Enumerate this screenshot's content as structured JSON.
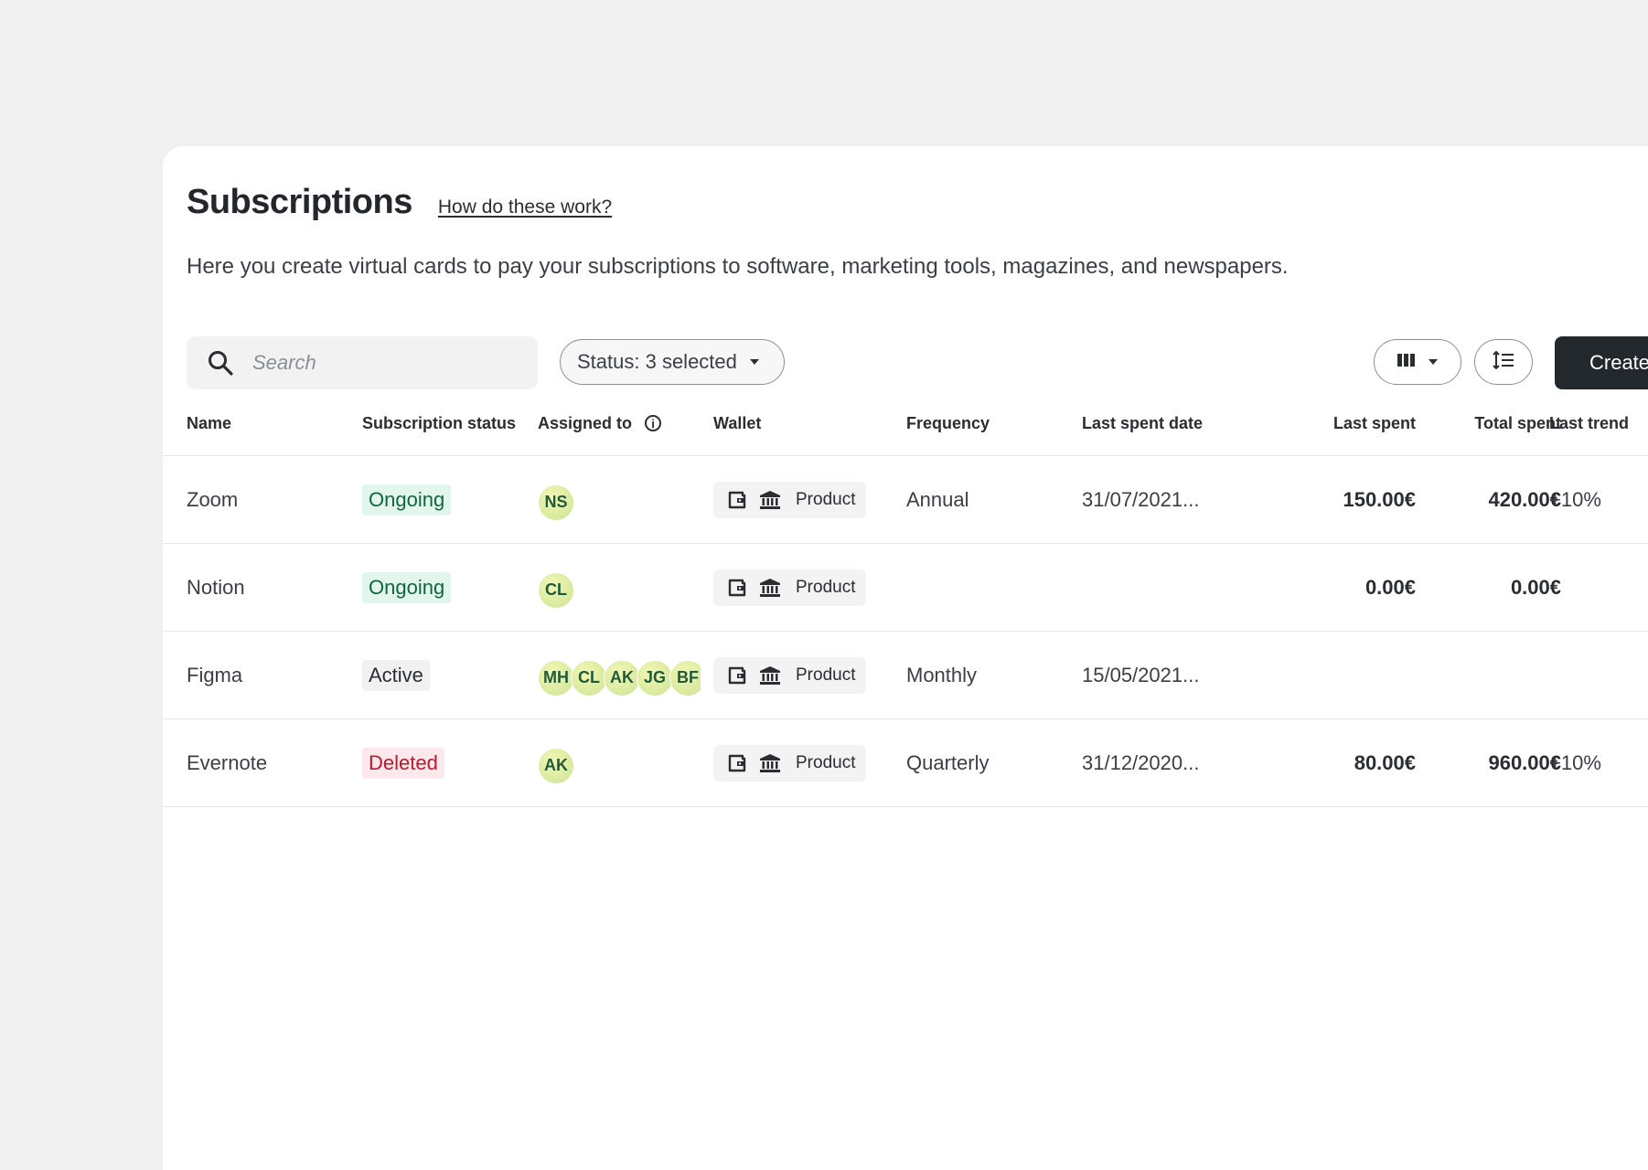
{
  "header": {
    "title": "Subscriptions",
    "help_link": "How do these work?",
    "description": "Here you create virtual cards to pay your subscriptions to software, marketing tools, magazines, and newspapers."
  },
  "toolbar": {
    "search_placeholder": "Search",
    "status_filter": "Status: 3 selected",
    "columns_icon": "columns-icon",
    "density_icon": "row-density-icon",
    "create_label": "Create a"
  },
  "table": {
    "columns": {
      "name": "Name",
      "status": "Subscription status",
      "assigned": "Assigned to",
      "wallet": "Wallet",
      "frequency": "Frequency",
      "last_spent_date": "Last spent date",
      "last_spent": "Last spent",
      "total_spent": "Total spent",
      "last_trend": "Last trend"
    },
    "rows": [
      {
        "name": "Zoom",
        "status": "Ongoing",
        "status_kind": "ongoing",
        "assignees": [
          "NS"
        ],
        "wallet": "Product",
        "frequency": "Annual",
        "last_spent_date": "31/07/2021...",
        "last_spent": "150.00€",
        "total_spent": "420.00€",
        "last_trend": "+10%"
      },
      {
        "name": "Notion",
        "status": "Ongoing",
        "status_kind": "ongoing",
        "assignees": [
          "CL"
        ],
        "wallet": "Product",
        "frequency": "",
        "last_spent_date": "",
        "last_spent": "0.00€",
        "total_spent": "0.00€",
        "last_trend": ""
      },
      {
        "name": "Figma",
        "status": "Active",
        "status_kind": "active",
        "assignees": [
          "MH",
          "CL",
          "AK",
          "JG",
          "BF"
        ],
        "wallet": "Product",
        "frequency": "Monthly",
        "last_spent_date": "15/05/2021...",
        "last_spent": "",
        "total_spent": "",
        "last_trend": ""
      },
      {
        "name": "Evernote",
        "status": "Deleted",
        "status_kind": "deleted",
        "assignees": [
          "AK"
        ],
        "wallet": "Product",
        "frequency": "Quarterly",
        "last_spent_date": "31/12/2020...",
        "last_spent": "80.00€",
        "total_spent": "960.00€",
        "last_trend": "+10%"
      }
    ]
  }
}
